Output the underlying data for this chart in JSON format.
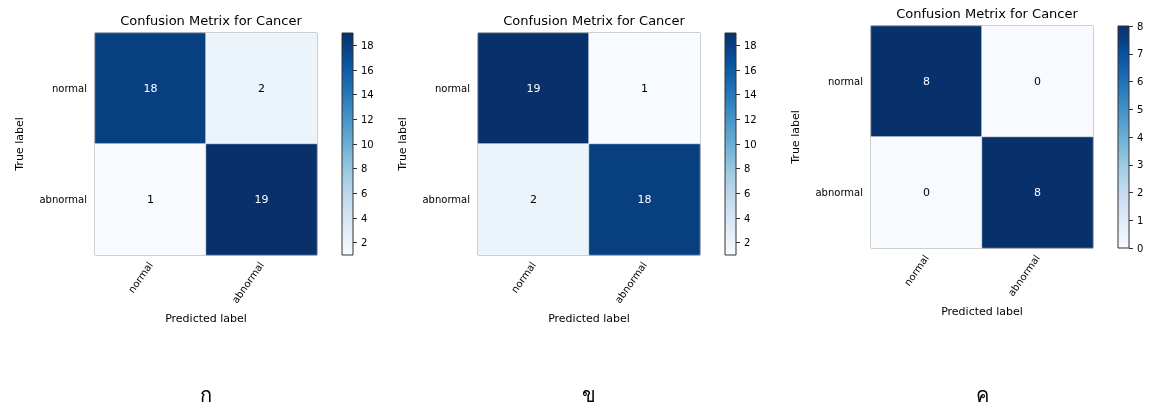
{
  "chart_data": [
    {
      "type": "heatmap",
      "title": "Confusion Metrix for Cancer",
      "xlabel": "Predicted label",
      "ylabel": "True label",
      "categories": [
        "normal",
        "abnormal"
      ],
      "y_categories": [
        "normal",
        "abnormal"
      ],
      "cells": [
        [
          18,
          2
        ],
        [
          1,
          19
        ]
      ],
      "clim": [
        1,
        19
      ],
      "cticks": [
        2,
        4,
        6,
        8,
        10,
        12,
        14,
        16,
        18
      ],
      "data_labels": true,
      "annotations": [
        "ก"
      ]
    },
    {
      "type": "heatmap",
      "title": "Confusion Metrix for Cancer",
      "xlabel": "Predicted label",
      "ylabel": "True label",
      "categories": [
        "normal",
        "abnormal"
      ],
      "y_categories": [
        "normal",
        "abnormal"
      ],
      "cells": [
        [
          19,
          1
        ],
        [
          2,
          18
        ]
      ],
      "clim": [
        1,
        19
      ],
      "cticks": [
        2,
        4,
        6,
        8,
        10,
        12,
        14,
        16,
        18
      ],
      "data_labels": true,
      "annotations": [
        "ข"
      ]
    },
    {
      "type": "heatmap",
      "title": "Confusion Metrix for Cancer",
      "xlabel": "Predicted label",
      "ylabel": "True label",
      "categories": [
        "normal",
        "abnormal"
      ],
      "y_categories": [
        "normal",
        "abnormal"
      ],
      "cells": [
        [
          8,
          0
        ],
        [
          0,
          8
        ]
      ],
      "clim": [
        0,
        8
      ],
      "cticks": [
        0,
        1,
        2,
        3,
        4,
        5,
        6,
        7,
        8
      ],
      "data_labels": true,
      "annotations": [
        "ค"
      ]
    }
  ]
}
